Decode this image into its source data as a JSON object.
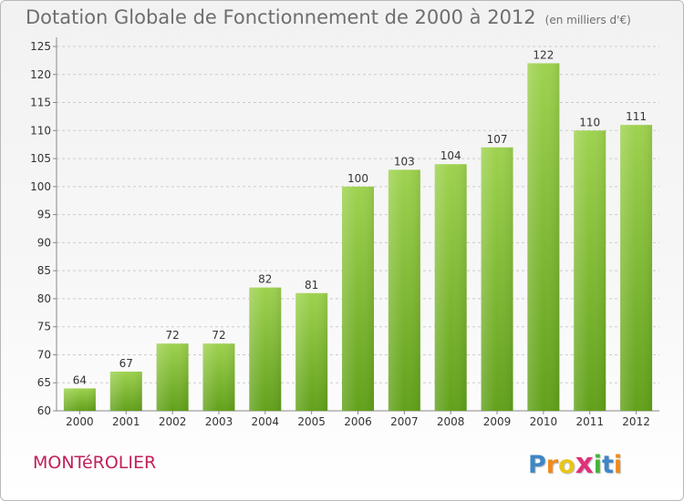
{
  "header": {
    "title": "Dotation Globale de Fonctionnement de 2000 à 2012",
    "unit": "(en milliers d'€)"
  },
  "footer": {
    "commune": "MONTéROLIER",
    "logo": {
      "letters": [
        "P",
        "r",
        "o",
        "x",
        "i",
        "t",
        "i"
      ],
      "colors": [
        "#3f86c6",
        "#f08a1c",
        "#e8c51a",
        "#e0307a",
        "#47b33a",
        "#3f86c6",
        "#f08a1c"
      ]
    }
  },
  "colors": {
    "bar_light": "#9ed24f",
    "bar_dark": "#62a11b",
    "grid": "#cccccc",
    "axis_text": "#333333",
    "title": "#6e6e6e",
    "commune": "#c2205a"
  },
  "chart_data": {
    "type": "bar",
    "title": "Dotation Globale de Fonctionnement de 2000 à 2012",
    "categories": [
      "2000",
      "2001",
      "2002",
      "2003",
      "2004",
      "2005",
      "2006",
      "2007",
      "2008",
      "2009",
      "2010",
      "2011",
      "2012"
    ],
    "values": [
      64,
      67,
      72,
      72,
      82,
      81,
      100,
      103,
      104,
      107,
      122,
      110,
      111
    ],
    "ylim": [
      60,
      125
    ],
    "yticks": [
      60,
      65,
      70,
      75,
      80,
      85,
      90,
      95,
      100,
      105,
      110,
      115,
      120,
      125
    ],
    "grid": "horizontal dashed"
  }
}
